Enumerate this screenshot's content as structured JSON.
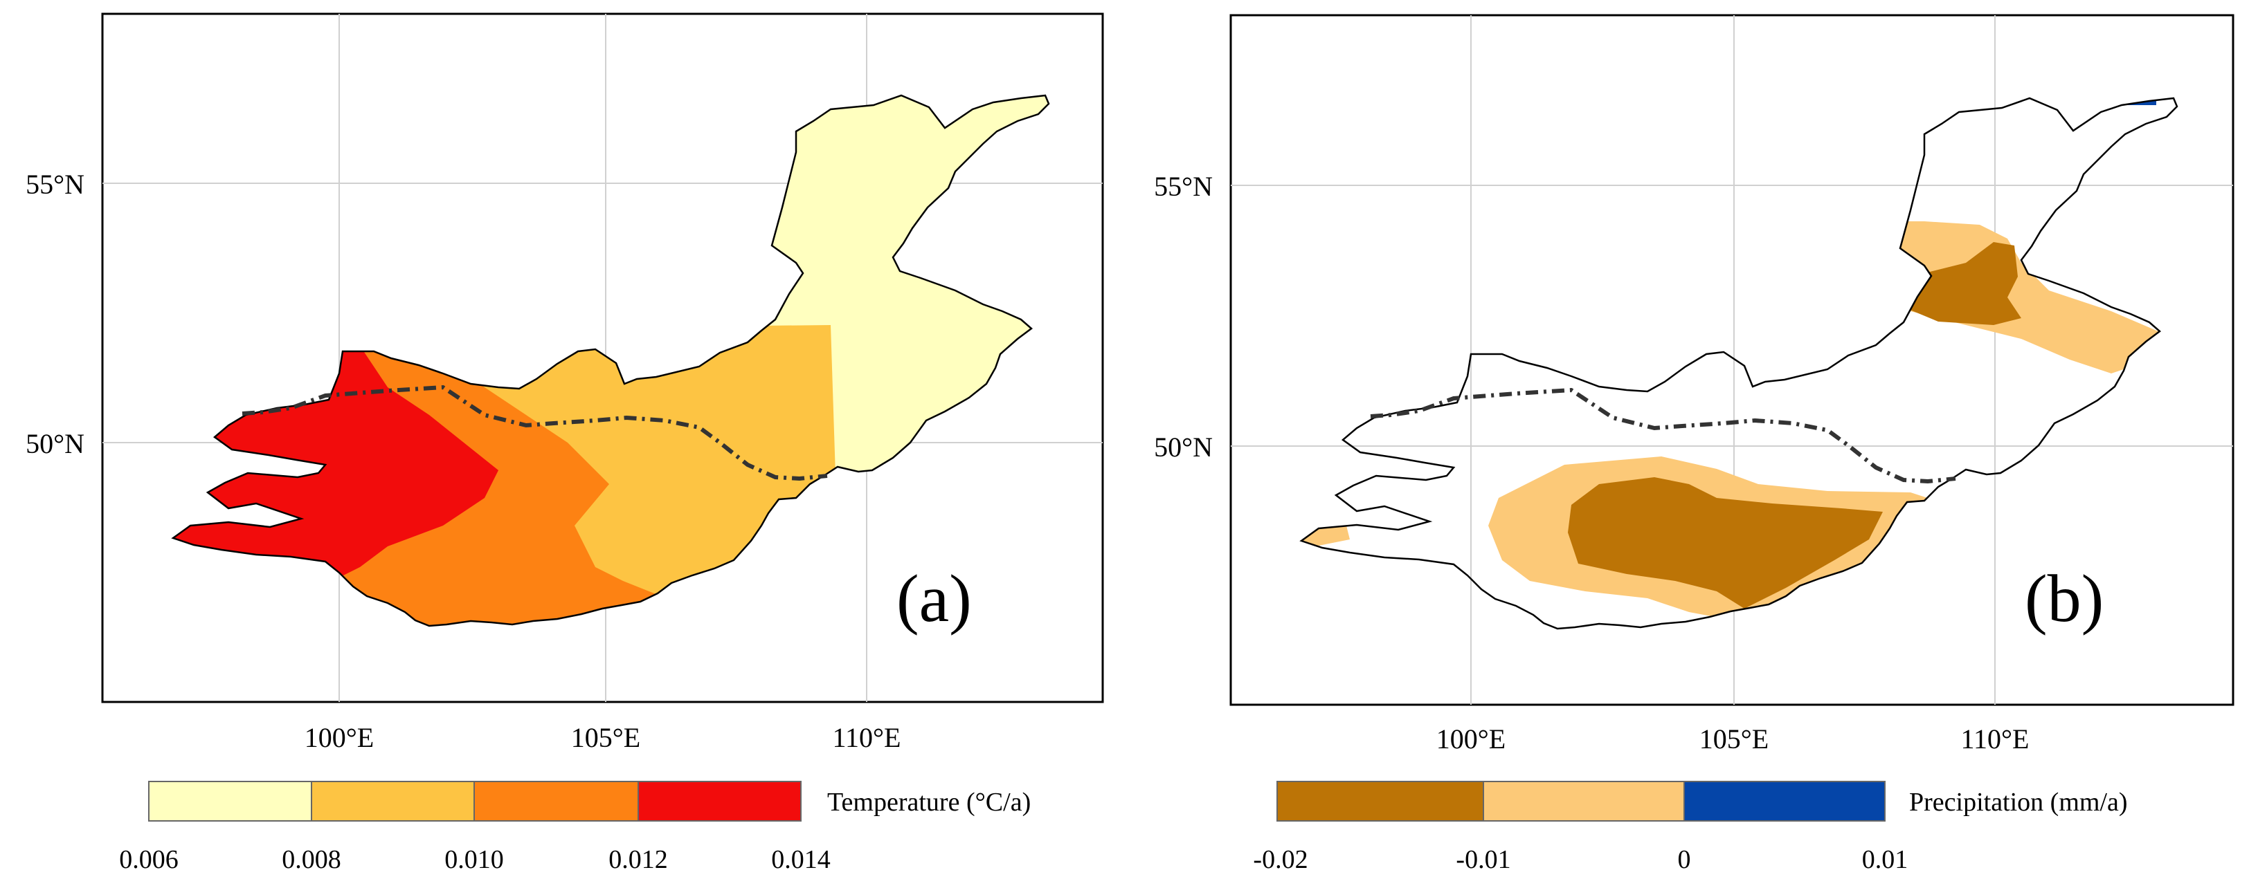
{
  "panels": [
    {
      "id": "a",
      "tag": "(a)",
      "x_ticks": [
        "100°E",
        "105°E",
        "110°E"
      ],
      "y_ticks": [
        "55°N",
        "50°N"
      ],
      "legend": {
        "title": "Temperature (°C/a)",
        "breaks": [
          "0.006",
          "0.008",
          "0.010",
          "0.012",
          "0.014"
        ],
        "colors": [
          "#FFFFBF",
          "#FDC443",
          "#FD8213",
          "#F20C0C"
        ]
      }
    },
    {
      "id": "b",
      "tag": "(b)",
      "x_ticks": [
        "100°E",
        "105°E",
        "110°E"
      ],
      "y_ticks": [
        "55°N",
        "50°N"
      ],
      "legend": {
        "title": "Precipitation (mm/a)",
        "breaks": [
          "-0.02",
          "-0.01",
          "0",
          "0.01"
        ],
        "colors": [
          "#BC7406",
          "#FCC978",
          "#0545A8"
        ]
      }
    }
  ]
}
